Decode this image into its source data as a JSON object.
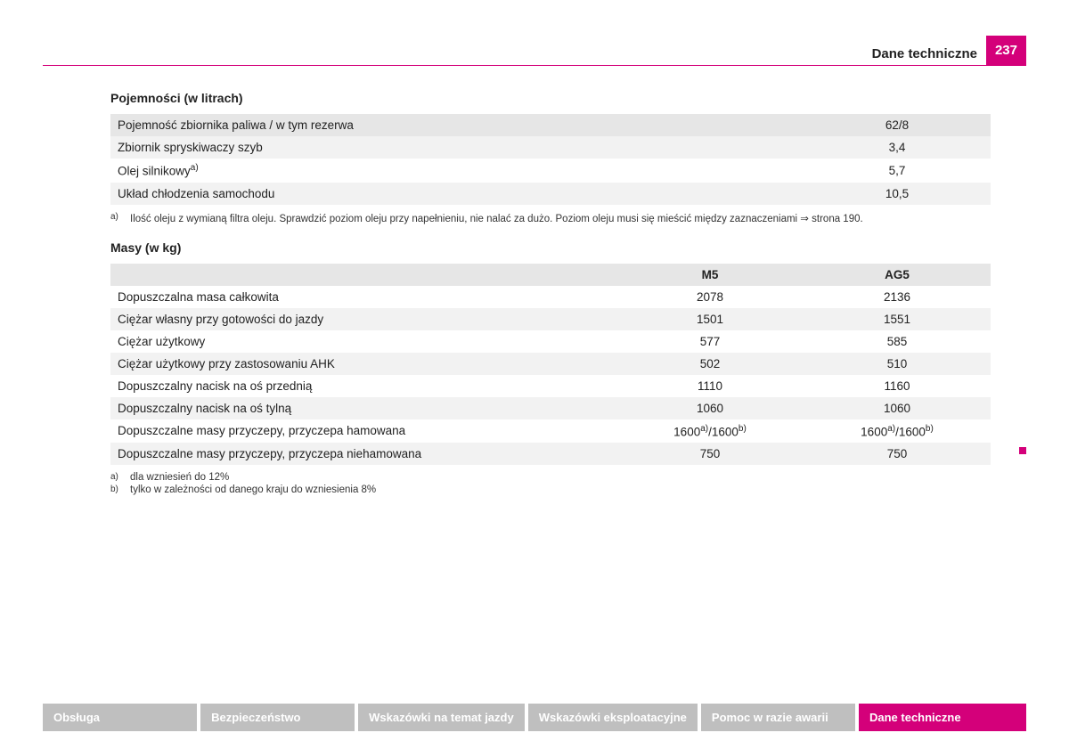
{
  "header": {
    "title": "Dane techniczne",
    "page_number": "237"
  },
  "section1": {
    "title": "Pojemności (w litrach)",
    "rows": [
      {
        "label": "Pojemność zbiornika paliwa / w tym rezerwa",
        "value": "62/8"
      },
      {
        "label": "Zbiornik spryskiwaczy szyb",
        "value": "3,4"
      },
      {
        "label": "Olej silnikowy",
        "sup": "a)",
        "value": "5,7"
      },
      {
        "label": "Układ chłodzenia samochodu",
        "value": "10,5"
      }
    ],
    "footnotes": [
      {
        "mark": "a)",
        "text": "Ilość oleju z wymianą filtra oleju. Sprawdzić poziom oleju przy napełnieniu, nie nalać za dużo. Poziom oleju musi się mieścić między zaznaczeniami ⇒ strona 190."
      }
    ]
  },
  "section2": {
    "title": "Masy (w kg)",
    "headers": [
      "",
      "M5",
      "AG5"
    ],
    "rows": [
      {
        "label": "Dopuszczalna masa całkowita",
        "v1": "2078",
        "v2": "2136"
      },
      {
        "label": "Ciężar własny przy gotowości do jazdy",
        "v1": "1501",
        "v2": "1551"
      },
      {
        "label": "Ciężar użytkowy",
        "v1": "577",
        "v2": "585"
      },
      {
        "label": "Ciężar użytkowy przy zastosowaniu AHK",
        "v1": "502",
        "v2": "510"
      },
      {
        "label": "Dopuszczalny nacisk na oś przednią",
        "v1": "1110",
        "v2": "1160"
      },
      {
        "label": "Dopuszczalny nacisk na oś tylną",
        "v1": "1060",
        "v2": "1060"
      },
      {
        "label": "Dopuszczalne masy przyczepy, przyczepa hamowana",
        "v1_parts": [
          "1600",
          "a)",
          "/1600",
          "b)"
        ],
        "v2_parts": [
          "1600",
          "a)",
          "/1600",
          "b)"
        ]
      },
      {
        "label": "Dopuszczalne masy przyczepy, przyczepa niehamowana",
        "v1": "750",
        "v2": "750"
      }
    ],
    "footnotes": [
      {
        "mark": "a)",
        "text": "dla wzniesień do 12%"
      },
      {
        "mark": "b)",
        "text": "tylko w zależności od danego kraju do wzniesienia 8%"
      }
    ]
  },
  "tabs": [
    "Obsługa",
    "Bezpieczeństwo",
    "Wskazówki na temat jazdy",
    "Wskazówki eksploatacyjne",
    "Pomoc w razie awarii",
    "Dane techniczne"
  ],
  "active_tab_index": 5,
  "colors": {
    "accent": "#d4007a",
    "row_grey": "#e6e6e6",
    "row_lightgrey": "#f2f2f2",
    "tab_inactive": "#bfbfbf"
  }
}
